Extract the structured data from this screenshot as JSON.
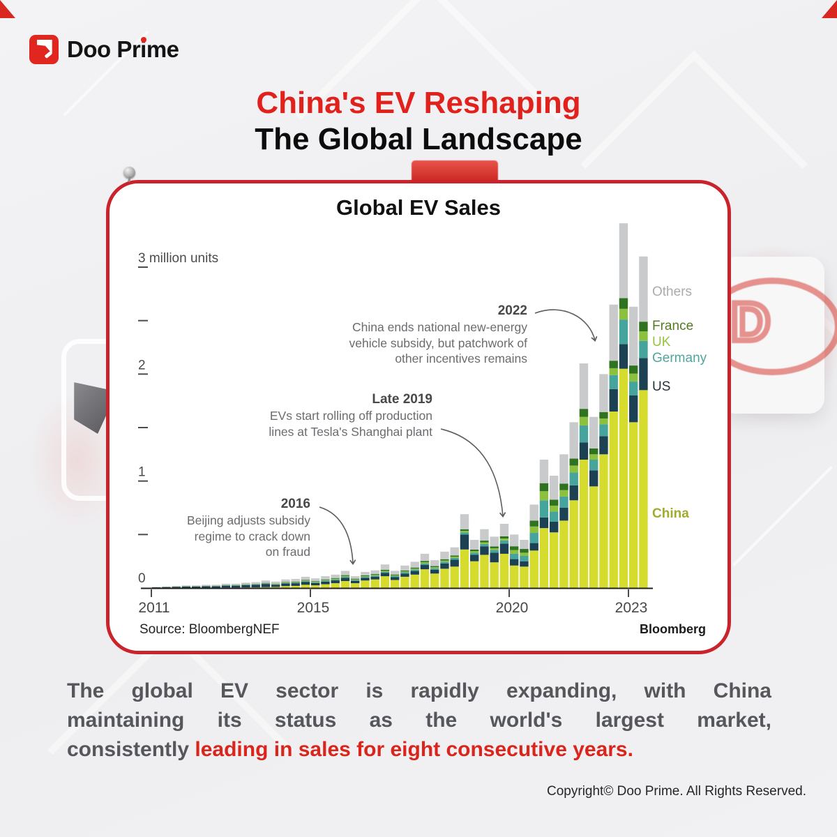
{
  "brand": {
    "part1": "Doo Pr",
    "part2": "i",
    "part3": "me"
  },
  "headline": {
    "line1": "China's EV Reshaping",
    "line2": "The Global Landscape"
  },
  "card": {
    "title": "Global EV Sales",
    "source": "Source: BloombergNEF",
    "credit": "Bloomberg",
    "annotations": [
      {
        "year": "2022",
        "lines": [
          "China ends national new-energy",
          "vehicle subsidy, but patchwork of",
          "other incentives remains"
        ]
      },
      {
        "year": "Late 2019",
        "lines": [
          "EVs start rolling off production",
          "lines at Tesla's Shanghai plant"
        ]
      },
      {
        "year": "2016",
        "lines": [
          "Beijing adjusts subsidy",
          "regime to crack down",
          "on fraud"
        ]
      }
    ]
  },
  "chart_data": {
    "type": "bar",
    "subtype": "stacked-quarterly",
    "title": "Global EV Sales",
    "ylabel": "million units",
    "ylim": [
      0,
      3.5
    ],
    "grid": false,
    "legend_position": "right",
    "y_ticks": [
      {
        "value": 0,
        "label": "0"
      },
      {
        "value": 0.5,
        "label": ""
      },
      {
        "value": 1,
        "label": "1"
      },
      {
        "value": 1.5,
        "label": ""
      },
      {
        "value": 2,
        "label": "2"
      },
      {
        "value": 2.5,
        "label": ""
      },
      {
        "value": 3,
        "label": "3 million units"
      }
    ],
    "x_ticks": [
      {
        "label": "2011",
        "quarter_index": 0
      },
      {
        "label": "2015",
        "quarter_index": 16
      },
      {
        "label": "2020",
        "quarter_index": 36
      },
      {
        "label": "2023",
        "quarter_index": 48
      }
    ],
    "categories": [
      "2011 Q1",
      "2011 Q2",
      "2011 Q3",
      "2011 Q4",
      "2012 Q1",
      "2012 Q2",
      "2012 Q3",
      "2012 Q4",
      "2013 Q1",
      "2013 Q2",
      "2013 Q3",
      "2013 Q4",
      "2014 Q1",
      "2014 Q2",
      "2014 Q3",
      "2014 Q4",
      "2015 Q1",
      "2015 Q2",
      "2015 Q3",
      "2015 Q4",
      "2016 Q1",
      "2016 Q2",
      "2016 Q3",
      "2016 Q4",
      "2017 Q1",
      "2017 Q2",
      "2017 Q3",
      "2017 Q4",
      "2018 Q1",
      "2018 Q2",
      "2018 Q3",
      "2018 Q4",
      "2019 Q1",
      "2019 Q2",
      "2019 Q3",
      "2019 Q4",
      "2020 Q1",
      "2020 Q2",
      "2020 Q3",
      "2020 Q4",
      "2021 Q1",
      "2021 Q2",
      "2021 Q3",
      "2021 Q4",
      "2022 Q1",
      "2022 Q2",
      "2022 Q3",
      "2022 Q4",
      "2023 Q1",
      "2023 Q2"
    ],
    "series": [
      {
        "name": "China",
        "color": "#D6DC2D",
        "label_color": "#A4AA2E",
        "values": [
          0.001,
          0.001,
          0.002,
          0.002,
          0.002,
          0.003,
          0.003,
          0.004,
          0.004,
          0.005,
          0.006,
          0.008,
          0.01,
          0.018,
          0.02,
          0.03,
          0.025,
          0.035,
          0.045,
          0.065,
          0.045,
          0.07,
          0.08,
          0.11,
          0.075,
          0.105,
          0.125,
          0.175,
          0.135,
          0.18,
          0.2,
          0.36,
          0.25,
          0.31,
          0.24,
          0.32,
          0.21,
          0.2,
          0.35,
          0.56,
          0.52,
          0.63,
          0.82,
          1.2,
          0.95,
          1.25,
          1.65,
          2.05,
          1.55,
          1.85
        ]
      },
      {
        "name": "US",
        "color": "#1C4152",
        "label_color": "#27333B",
        "values": [
          0.005,
          0.007,
          0.009,
          0.011,
          0.011,
          0.013,
          0.013,
          0.018,
          0.018,
          0.022,
          0.024,
          0.03,
          0.02,
          0.024,
          0.025,
          0.028,
          0.022,
          0.025,
          0.026,
          0.03,
          0.022,
          0.025,
          0.026,
          0.032,
          0.026,
          0.03,
          0.034,
          0.04,
          0.035,
          0.05,
          0.065,
          0.14,
          0.06,
          0.08,
          0.09,
          0.095,
          0.06,
          0.05,
          0.07,
          0.1,
          0.1,
          0.12,
          0.14,
          0.16,
          0.15,
          0.17,
          0.21,
          0.23,
          0.25,
          0.3
        ]
      },
      {
        "name": "Germany",
        "color": "#45A49C",
        "label_color": "#4FA69D",
        "values": [
          0.0,
          0.001,
          0.001,
          0.001,
          0.001,
          0.002,
          0.002,
          0.002,
          0.002,
          0.003,
          0.003,
          0.004,
          0.004,
          0.005,
          0.005,
          0.006,
          0.006,
          0.007,
          0.008,
          0.009,
          0.007,
          0.008,
          0.009,
          0.01,
          0.01,
          0.012,
          0.013,
          0.015,
          0.014,
          0.016,
          0.016,
          0.02,
          0.02,
          0.022,
          0.025,
          0.03,
          0.05,
          0.05,
          0.095,
          0.16,
          0.095,
          0.105,
          0.12,
          0.16,
          0.1,
          0.11,
          0.13,
          0.23,
          0.13,
          0.16
        ]
      },
      {
        "name": "UK",
        "color": "#8BC13F",
        "label_color": "#97C23E",
        "values": [
          0.0,
          0.0,
          0.001,
          0.001,
          0.001,
          0.001,
          0.001,
          0.001,
          0.001,
          0.002,
          0.002,
          0.002,
          0.003,
          0.004,
          0.004,
          0.006,
          0.005,
          0.006,
          0.007,
          0.008,
          0.006,
          0.007,
          0.007,
          0.008,
          0.007,
          0.008,
          0.009,
          0.011,
          0.01,
          0.011,
          0.011,
          0.014,
          0.014,
          0.015,
          0.016,
          0.018,
          0.035,
          0.03,
          0.06,
          0.085,
          0.055,
          0.06,
          0.065,
          0.08,
          0.05,
          0.055,
          0.065,
          0.1,
          0.075,
          0.09
        ]
      },
      {
        "name": "France",
        "color": "#2F7220",
        "label_color": "#527C20",
        "values": [
          0.001,
          0.001,
          0.001,
          0.002,
          0.002,
          0.002,
          0.002,
          0.003,
          0.003,
          0.003,
          0.003,
          0.004,
          0.004,
          0.005,
          0.005,
          0.006,
          0.006,
          0.007,
          0.007,
          0.008,
          0.007,
          0.008,
          0.008,
          0.01,
          0.008,
          0.009,
          0.01,
          0.012,
          0.011,
          0.012,
          0.012,
          0.015,
          0.015,
          0.016,
          0.017,
          0.02,
          0.035,
          0.035,
          0.055,
          0.075,
          0.055,
          0.06,
          0.065,
          0.075,
          0.055,
          0.06,
          0.07,
          0.1,
          0.075,
          0.09
        ]
      },
      {
        "name": "Others",
        "color": "#C9CACB",
        "label_color": "#A9ABAE",
        "values": [
          0.003,
          0.005,
          0.006,
          0.008,
          0.008,
          0.009,
          0.009,
          0.012,
          0.012,
          0.015,
          0.017,
          0.022,
          0.019,
          0.024,
          0.026,
          0.029,
          0.026,
          0.03,
          0.032,
          0.04,
          0.023,
          0.032,
          0.035,
          0.05,
          0.034,
          0.046,
          0.054,
          0.067,
          0.055,
          0.071,
          0.076,
          0.141,
          0.091,
          0.107,
          0.092,
          0.117,
          0.11,
          0.085,
          0.15,
          0.22,
          0.225,
          0.275,
          0.34,
          0.425,
          0.295,
          0.355,
          0.525,
          0.7,
          0.55,
          0.61
        ]
      }
    ]
  },
  "body": {
    "line1": "The global EV sector is rapidly expanding, with China",
    "line2": "maintaining its status as the world's largest market,",
    "line3_pre": "consistently ",
    "line3_highlight": "leading in sales for eight consecutive years."
  },
  "footer": {
    "copyright": "Copyright© Doo Prime. All Rights Reserved."
  }
}
